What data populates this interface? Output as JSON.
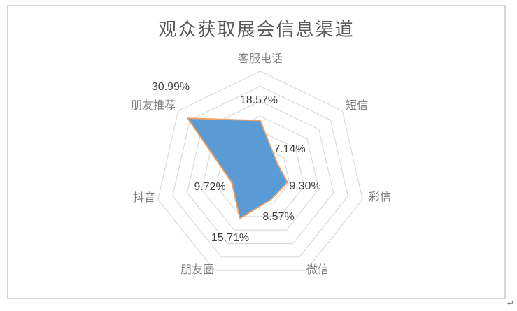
{
  "chart_data": {
    "type": "radar",
    "title": "观众获取展会信息渠道",
    "categories": [
      "客服电话",
      "短信",
      "彩信",
      "微信",
      "朋友圈",
      "抖音",
      "朋友推荐"
    ],
    "values": [
      18.57,
      7.14,
      9.3,
      8.57,
      15.71,
      9.72,
      30.99
    ],
    "value_labels": [
      "18.57%",
      "7.14%",
      "9.30%",
      "8.57%",
      "15.71%",
      "9.72%",
      "30.99%"
    ],
    "unit": "%",
    "axis_min": 0,
    "axis_max": 35,
    "axis_step": 5,
    "grid": true,
    "gridline_rings": 7,
    "legend": "none",
    "start_axis": "top",
    "direction": "clockwise",
    "colors": {
      "series_fill": "#5B9BD5",
      "series_stroke": "#EDA163",
      "gridline": "#DADADA",
      "title": "#595959",
      "category_label": "#7F7F7F",
      "value_label": "#404040",
      "frame_border": "#D6D6D6"
    }
  },
  "page": {
    "corner_mark": "↵"
  }
}
